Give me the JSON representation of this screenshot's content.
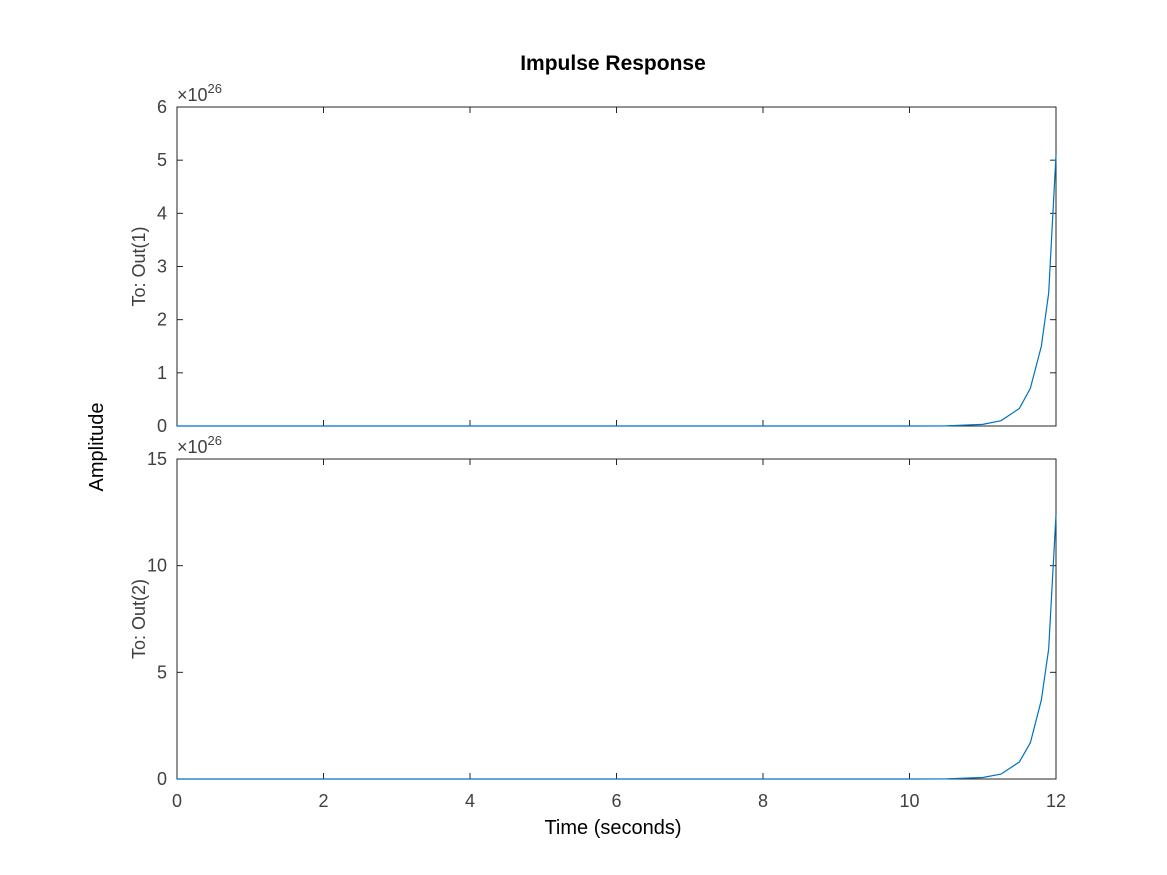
{
  "chart_data": {
    "type": "line",
    "title": "Impulse Response",
    "xlabel": "Time (seconds)",
    "ylabel": "Amplitude",
    "xlim": [
      0,
      12
    ],
    "xticks": [
      "0",
      "2",
      "4",
      "6",
      "8",
      "10",
      "12"
    ],
    "grid": false,
    "line_color": "#0072BD",
    "subplots": [
      {
        "ylabel": "To: Out(1)",
        "ylim": [
          0,
          6
        ],
        "yticks": [
          "0",
          "1",
          "2",
          "3",
          "4",
          "5",
          "6"
        ],
        "exponent_label": "×10",
        "exponent_power": "26",
        "scale_exponent": 26,
        "x": [
          0,
          2,
          4,
          6,
          8,
          10,
          10.5,
          11,
          11.25,
          11.5,
          11.65,
          11.8,
          11.9,
          12
        ],
        "y": [
          0,
          0,
          0,
          0,
          0,
          0,
          0.002,
          0.03,
          0.1,
          0.33,
          0.71,
          1.5,
          2.5,
          5.1
        ]
      },
      {
        "ylabel": "To: Out(2)",
        "ylim": [
          0,
          15
        ],
        "yticks": [
          "0",
          "5",
          "10",
          "15"
        ],
        "exponent_label": "×10",
        "exponent_power": "26",
        "scale_exponent": 26,
        "x": [
          0,
          2,
          4,
          6,
          8,
          10,
          10.5,
          11,
          11.25,
          11.5,
          11.65,
          11.8,
          11.9,
          12
        ],
        "y": [
          0,
          0,
          0,
          0,
          0,
          0,
          0.006,
          0.07,
          0.23,
          0.8,
          1.7,
          3.7,
          6.1,
          12.4
        ]
      }
    ]
  }
}
